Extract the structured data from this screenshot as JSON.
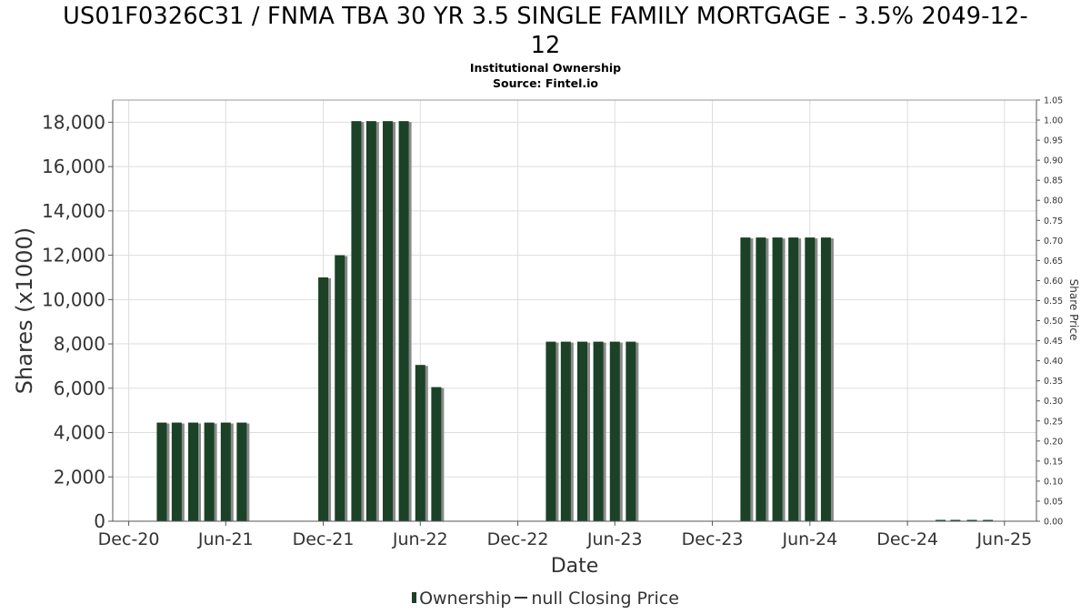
{
  "chart_data": {
    "type": "bar",
    "title": "US01F0326C31 / FNMA TBA 30 YR 3.5 SINGLE FAMILY MORTGAGE - 3.5% 2049-12-12",
    "title_line1": "US01F0326C31 / FNMA TBA 30 YR 3.5 SINGLE FAMILY MORTGAGE - 3.5% 2049-12-",
    "title_line2": "12",
    "subtitle": "Institutional Ownership",
    "source": "Source: Fintel.io",
    "xlabel": "Date",
    "ylabel": "Shares (x1000)",
    "y2label": "Share Price",
    "ylim": [
      0,
      19000
    ],
    "y2lim": [
      0,
      1.05
    ],
    "x_range": [
      "2020-11-01",
      "2025-07-31"
    ],
    "yticks": [
      0,
      2000,
      4000,
      6000,
      8000,
      10000,
      12000,
      14000,
      16000,
      18000
    ],
    "ytick_labels": [
      "0",
      "2,000",
      "4,000",
      "6,000",
      "8,000",
      "10,000",
      "12,000",
      "14,000",
      "16,000",
      "18,000"
    ],
    "y2ticks": [
      0,
      0.05,
      0.1,
      0.15,
      0.2,
      0.25,
      0.3,
      0.35,
      0.4,
      0.45,
      0.5,
      0.55,
      0.6,
      0.65,
      0.7,
      0.75,
      0.8,
      0.85,
      0.9,
      0.95,
      1.0,
      1.05
    ],
    "y2tick_labels": [
      "0.00",
      "0.05",
      "0.10",
      "0.15",
      "0.20",
      "0.25",
      "0.30",
      "0.35",
      "0.40",
      "0.45",
      "0.50",
      "0.55",
      "0.60",
      "0.65",
      "0.70",
      "0.75",
      "0.80",
      "0.85",
      "0.90",
      "0.95",
      "1.00",
      "1.05"
    ],
    "xticks": [
      {
        "date": "2020-12-01",
        "label": "Dec-20"
      },
      {
        "date": "2021-06-01",
        "label": "Jun-21"
      },
      {
        "date": "2021-12-01",
        "label": "Dec-21"
      },
      {
        "date": "2022-06-01",
        "label": "Jun-22"
      },
      {
        "date": "2022-12-01",
        "label": "Dec-22"
      },
      {
        "date": "2023-06-01",
        "label": "Jun-23"
      },
      {
        "date": "2023-12-01",
        "label": "Dec-23"
      },
      {
        "date": "2024-06-01",
        "label": "Jun-24"
      },
      {
        "date": "2024-12-01",
        "label": "Dec-24"
      },
      {
        "date": "2025-06-01",
        "label": "Jun-25"
      }
    ],
    "grid": true,
    "legend_position": "bottom",
    "series": [
      {
        "name": "Ownership",
        "color": "#1b4226",
        "shadow_color": "#8a8a8a",
        "points": [
          {
            "x": "2021-02-01",
            "y": 4450
          },
          {
            "x": "2021-03-01",
            "y": 4450
          },
          {
            "x": "2021-04-01",
            "y": 4450
          },
          {
            "x": "2021-05-01",
            "y": 4450
          },
          {
            "x": "2021-06-01",
            "y": 4450
          },
          {
            "x": "2021-07-01",
            "y": 4450
          },
          {
            "x": "2021-12-01",
            "y": 11000
          },
          {
            "x": "2022-01-01",
            "y": 12000
          },
          {
            "x": "2022-02-01",
            "y": 18050
          },
          {
            "x": "2022-03-01",
            "y": 18050
          },
          {
            "x": "2022-04-01",
            "y": 18050
          },
          {
            "x": "2022-05-01",
            "y": 18050
          },
          {
            "x": "2022-06-01",
            "y": 7050
          },
          {
            "x": "2022-07-01",
            "y": 6050
          },
          {
            "x": "2023-02-01",
            "y": 8100
          },
          {
            "x": "2023-03-01",
            "y": 8100
          },
          {
            "x": "2023-04-01",
            "y": 8100
          },
          {
            "x": "2023-05-01",
            "y": 8100
          },
          {
            "x": "2023-06-01",
            "y": 8100
          },
          {
            "x": "2023-07-01",
            "y": 8100
          },
          {
            "x": "2024-02-01",
            "y": 12800
          },
          {
            "x": "2024-03-01",
            "y": 12800
          },
          {
            "x": "2024-04-01",
            "y": 12800
          },
          {
            "x": "2024-05-01",
            "y": 12800
          },
          {
            "x": "2024-06-01",
            "y": 12800
          },
          {
            "x": "2024-07-01",
            "y": 12800
          },
          {
            "x": "2025-02-01",
            "y": 60
          },
          {
            "x": "2025-03-01",
            "y": 60
          },
          {
            "x": "2025-04-01",
            "y": 60
          },
          {
            "x": "2025-05-01",
            "y": 60
          }
        ]
      },
      {
        "name": "null Closing Price",
        "color": "#333333",
        "points": []
      }
    ]
  }
}
